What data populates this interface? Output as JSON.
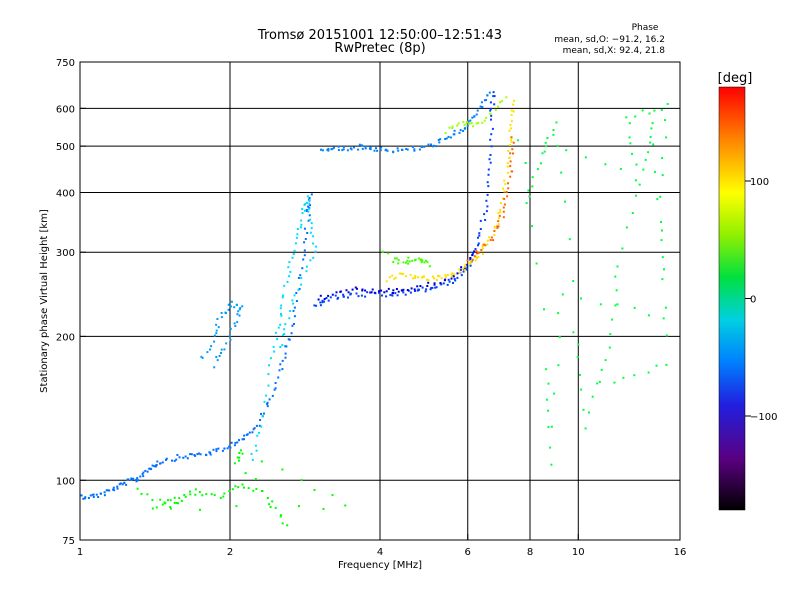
{
  "title": "Tromsø 20151001 12:50:00–12:51:43",
  "subtitle": "RwPretec (8p)",
  "phase_box": {
    "label": "Phase",
    "line_o": "mean, sd,O: −91.2, 16.2",
    "line_x": "mean, sd,X:  92.4, 21.8"
  },
  "colorbar": {
    "label": "[deg]",
    "ticks": [
      {
        "value": 100,
        "label": "100"
      },
      {
        "value": 0,
        "label": "0"
      },
      {
        "value": -100,
        "label": "−100"
      }
    ],
    "range": [
      -180,
      180
    ]
  },
  "chart_data": {
    "type": "scatter",
    "title": "Tromsø 20151001 12:50:00–12:51:43",
    "subtitle": "RwPretec (8p)",
    "xlabel": "Frequency [MHz]",
    "ylabel": "Stationary phase Virtual Height [km]",
    "xscale": "log",
    "yscale": "log",
    "xlim": [
      1,
      16
    ],
    "ylim": [
      75,
      750
    ],
    "xticks": [
      {
        "value": 1,
        "label": "1"
      },
      {
        "value": 2,
        "label": "2"
      },
      {
        "value": 4,
        "label": "4"
      },
      {
        "value": 6,
        "label": "6"
      },
      {
        "value": 8,
        "label": "8"
      },
      {
        "value": 10,
        "label": "10"
      },
      {
        "value": 16,
        "label": "16"
      }
    ],
    "yticks": [
      {
        "value": 75,
        "label": "75"
      },
      {
        "value": 100,
        "label": "100"
      },
      {
        "value": 200,
        "label": "200"
      },
      {
        "value": 300,
        "label": "300"
      },
      {
        "value": 400,
        "label": "400"
      },
      {
        "value": 500,
        "label": "500"
      },
      {
        "value": 600,
        "label": "600"
      },
      {
        "value": 750,
        "label": "750"
      }
    ],
    "xgrid": [
      2,
      4,
      6,
      8,
      10
    ],
    "ygrid": [
      100,
      200,
      300,
      400,
      500,
      600
    ],
    "color_encoding": "phase [deg]",
    "traces": [
      {
        "phase": -105,
        "points": [
          [
            1.0,
            93
          ],
          [
            1.05,
            93
          ],
          [
            1.1,
            94
          ],
          [
            1.15,
            96
          ],
          [
            1.2,
            98
          ],
          [
            1.25,
            100
          ],
          [
            1.3,
            101
          ],
          [
            1.35,
            105
          ],
          [
            1.4,
            108
          ],
          [
            1.45,
            110
          ],
          [
            1.55,
            112
          ],
          [
            1.65,
            113
          ],
          [
            1.75,
            114
          ],
          [
            1.85,
            115
          ],
          [
            1.95,
            117
          ],
          [
            2.05,
            121
          ],
          [
            2.15,
            124
          ],
          [
            2.25,
            130
          ],
          [
            2.35,
            142
          ],
          [
            2.45,
            158
          ],
          [
            2.55,
            180
          ],
          [
            2.62,
            200
          ],
          [
            2.7,
            230
          ],
          [
            2.78,
            280
          ],
          [
            2.83,
            330
          ],
          [
            2.88,
            400
          ],
          [
            2.86,
            360
          ]
        ]
      },
      {
        "phase": -90,
        "points": [
          [
            1.75,
            180
          ],
          [
            1.85,
            200
          ],
          [
            1.9,
            220
          ],
          [
            2.0,
            235
          ],
          [
            2.1,
            230
          ],
          [
            2.05,
            215
          ],
          [
            1.95,
            190
          ],
          [
            1.85,
            175
          ]
        ]
      },
      {
        "phase": -70,
        "points": [
          [
            2.2,
            110
          ],
          [
            2.3,
            130
          ],
          [
            2.4,
            175
          ],
          [
            2.48,
            210
          ],
          [
            2.55,
            240
          ],
          [
            2.62,
            280
          ],
          [
            2.7,
            320
          ],
          [
            2.78,
            360
          ],
          [
            2.85,
            390
          ],
          [
            2.9,
            350
          ],
          [
            2.95,
            300
          ],
          [
            2.75,
            260
          ],
          [
            2.6,
            220
          ],
          [
            2.5,
            190
          ]
        ]
      },
      {
        "phase": -100,
        "points": [
          [
            3.05,
            490
          ],
          [
            3.2,
            495
          ],
          [
            3.4,
            498
          ],
          [
            3.6,
            500
          ],
          [
            3.8,
            498
          ],
          [
            4.0,
            495
          ],
          [
            4.3,
            492
          ],
          [
            4.6,
            495
          ],
          [
            4.9,
            500
          ],
          [
            5.2,
            510
          ],
          [
            5.5,
            525
          ],
          [
            5.8,
            545
          ],
          [
            6.1,
            570
          ],
          [
            6.4,
            610
          ],
          [
            6.6,
            650
          ]
        ]
      },
      {
        "phase": -120,
        "points": [
          [
            2.95,
            232
          ],
          [
            3.1,
            240
          ],
          [
            3.3,
            243
          ],
          [
            3.5,
            245
          ],
          [
            3.8,
            246
          ],
          [
            4.1,
            245
          ],
          [
            4.4,
            247
          ],
          [
            4.7,
            250
          ],
          [
            5.0,
            253
          ],
          [
            5.3,
            257
          ],
          [
            5.6,
            264
          ],
          [
            5.9,
            276
          ],
          [
            6.1,
            290
          ],
          [
            6.3,
            320
          ],
          [
            6.45,
            360
          ],
          [
            6.55,
            420
          ],
          [
            6.62,
            500
          ],
          [
            6.68,
            600
          ],
          [
            6.72,
            650
          ]
        ]
      },
      {
        "phase": -140,
        "points": [
          [
            3.0,
            240
          ],
          [
            3.3,
            250
          ],
          [
            3.6,
            252
          ],
          [
            3.9,
            250
          ],
          [
            4.2,
            250
          ],
          [
            4.5,
            252
          ],
          [
            5.0,
            257
          ],
          [
            5.5,
            266
          ],
          [
            5.9,
            280
          ],
          [
            6.2,
            300
          ]
        ]
      },
      {
        "phase": 110,
        "points": [
          [
            4.1,
            265
          ],
          [
            4.4,
            270
          ],
          [
            4.7,
            268
          ],
          [
            5.0,
            265
          ],
          [
            5.3,
            267
          ],
          [
            5.6,
            272
          ],
          [
            5.9,
            280
          ],
          [
            6.2,
            292
          ],
          [
            6.5,
            310
          ],
          [
            6.8,
            340
          ],
          [
            7.0,
            380
          ],
          [
            7.15,
            440
          ],
          [
            7.25,
            500
          ],
          [
            7.3,
            560
          ],
          [
            7.35,
            620
          ]
        ]
      },
      {
        "phase": 150,
        "points": [
          [
            6.0,
            290
          ],
          [
            6.4,
            305
          ],
          [
            6.8,
            330
          ],
          [
            7.0,
            360
          ],
          [
            7.2,
            400
          ],
          [
            7.3,
            460
          ],
          [
            7.35,
            520
          ]
        ]
      },
      {
        "phase": 40,
        "points": [
          [
            4.2,
            290
          ],
          [
            4.5,
            288
          ],
          [
            4.8,
            290
          ],
          [
            5.0,
            285
          ],
          [
            4.0,
            300
          ]
        ]
      },
      {
        "phase": 70,
        "points": [
          [
            5.4,
            540
          ],
          [
            5.8,
            560
          ],
          [
            6.1,
            555
          ],
          [
            6.6,
            580
          ],
          [
            7.1,
            640
          ]
        ]
      },
      {
        "phase": 0,
        "points": [
          [
            7.8,
            380
          ],
          [
            8.4,
            480
          ],
          [
            9.0,
            560
          ],
          [
            9.8,
            205
          ],
          [
            10.2,
            130
          ],
          [
            11.5,
            190
          ],
          [
            12.0,
            280
          ],
          [
            13.5,
            450
          ],
          [
            14.0,
            560
          ],
          [
            14.8,
            220
          ],
          [
            9.2,
            245
          ],
          [
            8.8,
            108
          ],
          [
            8.6,
            170
          ],
          [
            7.6,
            520
          ],
          [
            13.0,
            430
          ],
          [
            12.5,
            580
          ],
          [
            15.0,
            610
          ],
          [
            14.5,
            350
          ],
          [
            15.0,
            175
          ],
          [
            11.0,
            160
          ]
        ]
      },
      {
        "phase": 20,
        "points": [
          [
            1.3,
            96
          ],
          [
            1.5,
            88
          ],
          [
            1.6,
            92
          ],
          [
            1.7,
            95
          ],
          [
            1.9,
            93
          ],
          [
            2.05,
            98
          ],
          [
            2.3,
            95
          ],
          [
            2.6,
            80
          ],
          [
            2.05,
            110
          ],
          [
            2.1,
            115
          ],
          [
            3.4,
            88
          ],
          [
            1.4,
            88
          ],
          [
            1.55,
            92
          ]
        ]
      }
    ]
  }
}
